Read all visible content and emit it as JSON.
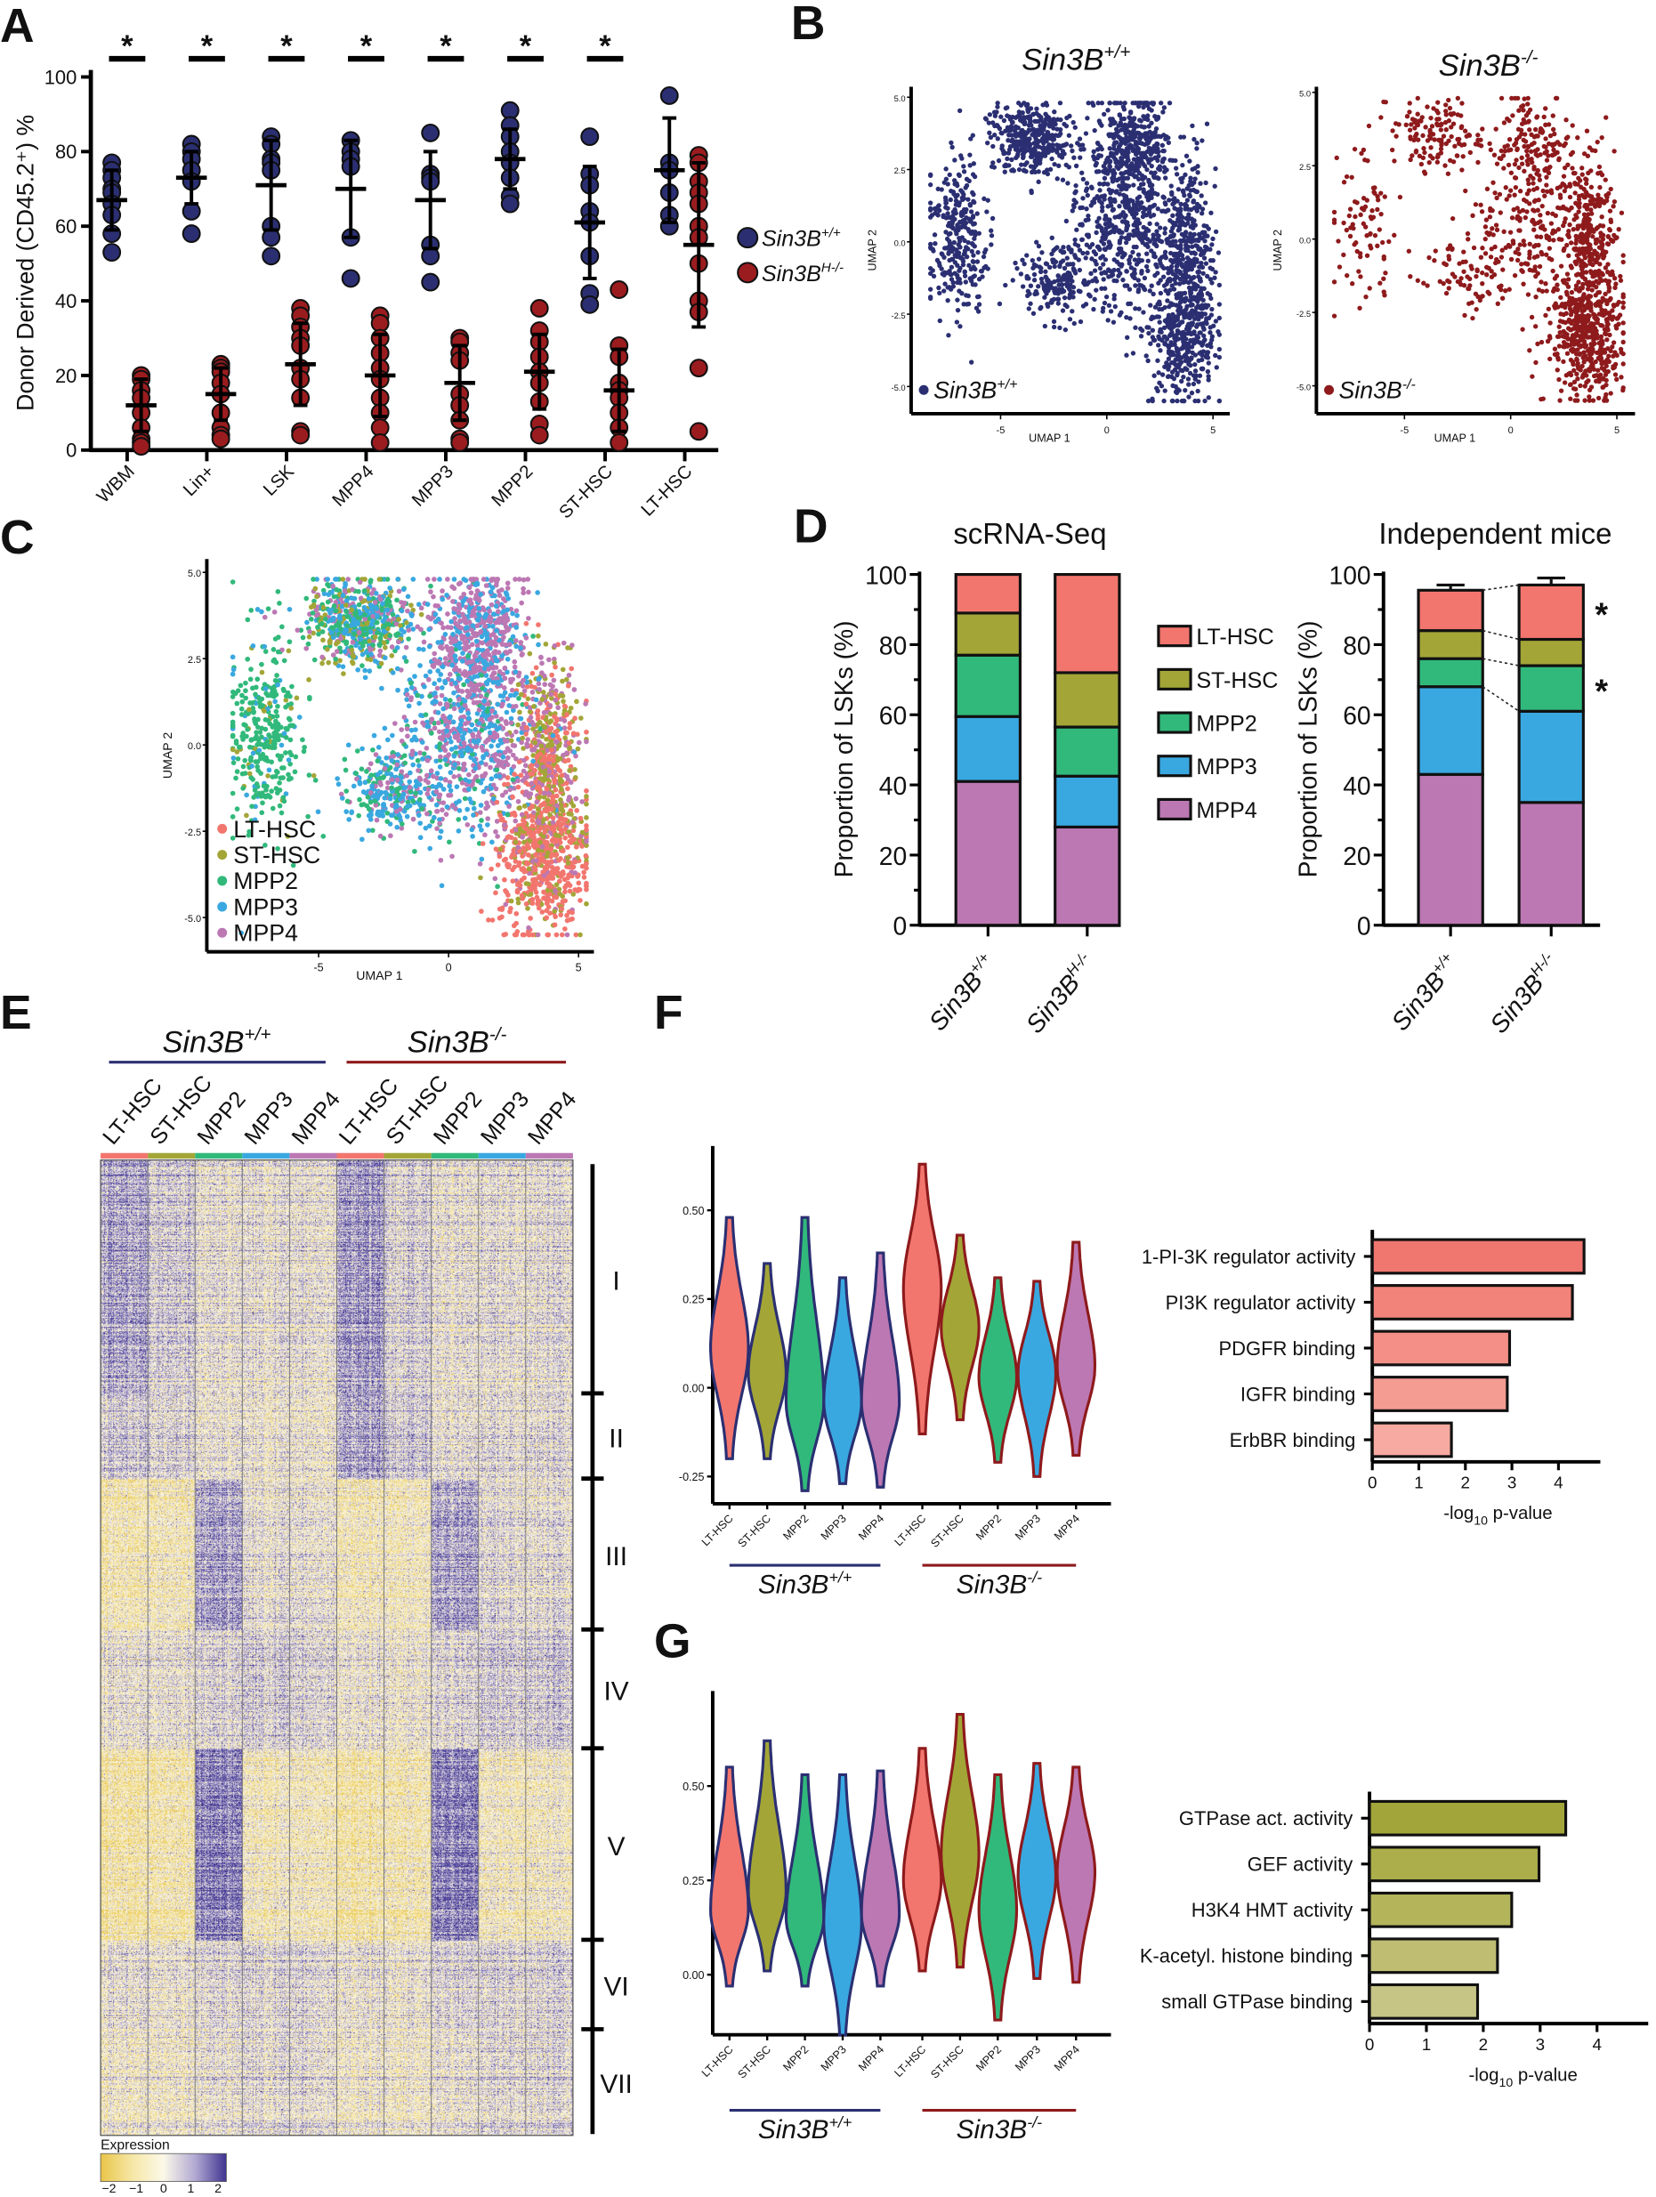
{
  "panel_labels": {
    "A": "A",
    "B": "B",
    "C": "C",
    "D": "D",
    "E": "E",
    "F": "F",
    "G": "G"
  },
  "genotypes": {
    "wt": {
      "base": "Sin3B",
      "sup": "+/+"
    },
    "het": {
      "base": "Sin3B",
      "sup": "H-/-"
    },
    "ko": {
      "base": "Sin3B",
      "sup": "-/-"
    }
  },
  "colors": {
    "wt": "#2b2f72",
    "het": "#9b1c1f",
    "ko": "#8e1a1c",
    "LT-HSC": "#f2766e",
    "ST-HSC": "#a3a637",
    "MPP2": "#31b97b",
    "MPP3": "#3aa8e0",
    "MPP4": "#bc78b3"
  },
  "cell_types": [
    "LT-HSC",
    "ST-HSC",
    "MPP2",
    "MPP3",
    "MPP4"
  ],
  "chart_data": [
    {
      "id": "A",
      "type": "scatter",
      "ylabel": "Donor Derived (CD45.2⁺) %",
      "ylim": [
        0,
        100
      ],
      "yticks": [
        "0",
        "20",
        "40",
        "60",
        "80",
        "100"
      ],
      "categories": [
        "WBM",
        "Lin+",
        "LSK",
        "MPP4",
        "MPP3",
        "MPP2",
        "ST-HSC",
        "LT-HSC"
      ],
      "significance": [
        "*",
        "*",
        "*",
        "*",
        "*",
        "*",
        "*",
        ""
      ],
      "legend": [
        "wt",
        "het"
      ],
      "series": [
        {
          "name": "wt",
          "mean": [
            67,
            73,
            71,
            70,
            67,
            78,
            61,
            75
          ],
          "sd": [
            8,
            7,
            12,
            13,
            13,
            8,
            15,
            14
          ],
          "points": [
            [
              77,
              75,
              73,
              70,
              69,
              66,
              63,
              58,
              53
            ],
            [
              82,
              80,
              78,
              75,
              72,
              64,
              58
            ],
            [
              84,
              82,
              78,
              77,
              75,
              60,
              57,
              52
            ],
            [
              83,
              80,
              78,
              76,
              57,
              46
            ],
            [
              85,
              74,
              73,
              72,
              55,
              52,
              45
            ],
            [
              91,
              87,
              84,
              80,
              77,
              73,
              68,
              66
            ],
            [
              84,
              74,
              71,
              64,
              61,
              52,
              42,
              39
            ],
            [
              95,
              77,
              75,
              69,
              63,
              60
            ]
          ]
        },
        {
          "name": "het",
          "mean": [
            12,
            15,
            23,
            20,
            18,
            21,
            16,
            55
          ],
          "sd": [
            7,
            7,
            11,
            11,
            10,
            10,
            11,
            22
          ],
          "points": [
            [
              20,
              19,
              16,
              14,
              10,
              6,
              3,
              2,
              1
            ],
            [
              23,
              22,
              21,
              18,
              15,
              10,
              6,
              4,
              3
            ],
            [
              38,
              36,
              33,
              30,
              28,
              22,
              19,
              14,
              5,
              4
            ],
            [
              36,
              34,
              30,
              26,
              22,
              19,
              14,
              10,
              6,
              2
            ],
            [
              30,
              29,
              26,
              24,
              15,
              12,
              8,
              3,
              2
            ],
            [
              38,
              32,
              29,
              25,
              21,
              18,
              13,
              7,
              4
            ],
            [
              43,
              28,
              25,
              18,
              16,
              14,
              10,
              6,
              2
            ],
            [
              79,
              77,
              72,
              69,
              66,
              60,
              57,
              50,
              40,
              37,
              22,
              5
            ]
          ]
        }
      ]
    },
    {
      "id": "B",
      "type": "scatter",
      "plots": [
        {
          "title": "wt",
          "legend": "wt",
          "color": "wt"
        },
        {
          "title": "ko",
          "legend": "ko",
          "color": "ko"
        }
      ],
      "xlabel": "UMAP  1",
      "ylabel": "UMAP  2",
      "xticks": [
        "-5",
        "0",
        "5"
      ],
      "yticks": [
        "5.0",
        "2.5",
        "0.0",
        "-2.5",
        "-5.0"
      ]
    },
    {
      "id": "C",
      "type": "scatter",
      "xlabel": "UMAP  1",
      "ylabel": "UMAP  2",
      "xticks": [
        "-5",
        "0",
        "5"
      ],
      "yticks": [
        "5.0",
        "2.5",
        "0.0",
        "-2.5",
        "-5.0"
      ],
      "legend": [
        "LT-HSC",
        "ST-HSC",
        "MPP2",
        "MPP3",
        "MPP4"
      ]
    },
    {
      "id": "D",
      "type": "bar",
      "stacked": true,
      "ylabel": "Proportion of  LSKs (%)",
      "ylim": [
        0,
        100
      ],
      "yticks": [
        "0",
        "20",
        "40",
        "60",
        "80",
        "100"
      ],
      "legend": [
        "LT-HSC",
        "ST-HSC",
        "MPP2",
        "MPP3",
        "MPP4"
      ],
      "charts": [
        {
          "title": "scRNA-Seq",
          "categories": [
            "wt",
            "het"
          ],
          "series": [
            {
              "name": "MPP4",
              "values": [
                41,
                28
              ]
            },
            {
              "name": "MPP3",
              "values": [
                18.5,
                14.5
              ]
            },
            {
              "name": "MPP2",
              "values": [
                17.5,
                14
              ]
            },
            {
              "name": "ST-HSC",
              "values": [
                12,
                15.5
              ]
            },
            {
              "name": "LT-HSC",
              "values": [
                11,
                28
              ]
            }
          ]
        },
        {
          "title": "Independent mice",
          "categories": [
            "wt",
            "het"
          ],
          "series": [
            {
              "name": "MPP4",
              "values": [
                43,
                35
              ],
              "err": [
                4.5,
                4
              ]
            },
            {
              "name": "MPP3",
              "values": [
                25,
                26
              ],
              "err": [
                3,
                3.5
              ]
            },
            {
              "name": "MPP2",
              "values": [
                8,
                13
              ],
              "err": [
                1.5,
                2
              ]
            },
            {
              "name": "ST-HSC",
              "values": [
                8,
                7.5
              ],
              "err": [
                1.5,
                1
              ]
            },
            {
              "name": "LT-HSC",
              "values": [
                11.5,
                15.5
              ],
              "err": [
                1.5,
                2
              ]
            }
          ],
          "significance": [
            {
              "series": "LT-HSC",
              "mark": "*"
            },
            {
              "series": "MPP2",
              "mark": "*"
            }
          ]
        }
      ]
    },
    {
      "id": "E",
      "type": "heatmap",
      "groups": [
        "wt",
        "ko"
      ],
      "columns": [
        "LT-HSC",
        "ST-HSC",
        "MPP2",
        "MPP3",
        "MPP4",
        "LT-HSC",
        "ST-HSC",
        "MPP2",
        "MPP3",
        "MPP4"
      ],
      "clusters": [
        "I",
        "II",
        "III",
        "IV",
        "V",
        "VI",
        "VII"
      ],
      "cluster_mean_expression": [
        [
          0.9,
          0.4,
          0,
          0.1,
          0.1,
          1.0,
          0.3,
          0,
          0.1,
          0.1
        ],
        [
          0.5,
          0.3,
          0,
          0,
          0,
          0.9,
          0.5,
          0.1,
          0.2,
          0.2
        ],
        [
          -0.6,
          -0.5,
          0.9,
          0.1,
          0.1,
          -0.5,
          -0.4,
          0.9,
          0.2,
          0.1
        ],
        [
          0.1,
          0.1,
          0.3,
          0.5,
          0.4,
          0,
          0,
          0.3,
          0.5,
          0.5
        ],
        [
          -0.8,
          -0.7,
          1.3,
          -0.4,
          -0.4,
          -0.8,
          -0.6,
          1.3,
          -0.4,
          -0.4
        ],
        [
          0.1,
          0,
          0.2,
          0.3,
          0.3,
          0,
          0,
          0.3,
          0.3,
          0.3
        ],
        [
          -0.2,
          -0.2,
          0,
          0.2,
          0.2,
          -0.2,
          -0.2,
          0,
          0.2,
          0.2
        ]
      ],
      "legend_title": "Expression",
      "legend_ticks": [
        "−2",
        "−1",
        "0",
        "1",
        "2"
      ]
    },
    {
      "id": "F-violin",
      "type": "violin",
      "ylim": [
        -0.3,
        0.65
      ],
      "yticks": [
        "0.50",
        "0.25",
        "0.00",
        "-0.25"
      ],
      "ytick_values": [
        0.5,
        0.25,
        0,
        -0.25
      ],
      "categories": [
        "LT-HSC",
        "ST-HSC",
        "MPP2",
        "MPP3",
        "MPP4",
        "LT-HSC",
        "ST-HSC",
        "MPP2",
        "MPP3",
        "MPP4"
      ],
      "groups": [
        "wt",
        "ko"
      ],
      "stats": [
        [
          -0.2,
          0.48,
          0.11
        ],
        [
          -0.2,
          0.35,
          0.04
        ],
        [
          -0.29,
          0.48,
          -0.04
        ],
        [
          -0.27,
          0.31,
          -0.04
        ],
        [
          -0.28,
          0.38,
          -0.04
        ],
        [
          -0.13,
          0.63,
          0.28
        ],
        [
          -0.09,
          0.43,
          0.17
        ],
        [
          -0.21,
          0.31,
          0.03
        ],
        [
          -0.25,
          0.3,
          0.04
        ],
        [
          -0.19,
          0.41,
          0.06
        ]
      ]
    },
    {
      "id": "F-bar",
      "type": "bar",
      "orientation": "horizontal",
      "xlabel": "-log",
      "xlabel_sub": "10",
      "xlabel_tail": " p-value",
      "xticks": [
        "0",
        "1",
        "2",
        "3",
        "4"
      ],
      "categories": [
        "1-PI-3K regulator activity",
        "PI3K regulator activity",
        "PDGFR binding",
        "IGFR binding",
        "ErbBR binding"
      ],
      "values": [
        4.55,
        4.3,
        2.95,
        2.9,
        1.7
      ],
      "bar_colors": [
        "#f07670",
        "#f2837a",
        "#f38f86",
        "#f49b92",
        "#f6aaa1"
      ]
    },
    {
      "id": "G-violin",
      "type": "violin",
      "ylim": [
        -0.18,
        0.72
      ],
      "yticks": [
        "0.50",
        "0.25",
        "0.00"
      ],
      "ytick_values": [
        0.5,
        0.25,
        0
      ],
      "categories": [
        "LT-HSC",
        "ST-HSC",
        "MPP2",
        "MPP3",
        "MPP4",
        "LT-HSC",
        "ST-HSC",
        "MPP2",
        "MPP3",
        "MPP4"
      ],
      "groups": [
        "wt",
        "ko"
      ],
      "stats": [
        [
          -0.03,
          0.55,
          0.17
        ],
        [
          0.01,
          0.62,
          0.22
        ],
        [
          -0.03,
          0.53,
          0.15
        ],
        [
          -0.16,
          0.53,
          0.14
        ],
        [
          -0.03,
          0.54,
          0.16
        ],
        [
          0.01,
          0.6,
          0.25
        ],
        [
          0.02,
          0.69,
          0.32
        ],
        [
          -0.12,
          0.53,
          0.17
        ],
        [
          -0.01,
          0.56,
          0.26
        ],
        [
          -0.02,
          0.55,
          0.27
        ]
      ]
    },
    {
      "id": "G-bar",
      "type": "bar",
      "orientation": "horizontal",
      "xlabel": "-log",
      "xlabel_sub": "10",
      "xlabel_tail": " p-value",
      "xticks": [
        "0",
        "1",
        "2",
        "3",
        "4"
      ],
      "categories": [
        "GTPase act. activity",
        "GEF activity",
        "H3K4 HMT activity",
        "K-acetyl. histone binding",
        "small GTPase binding"
      ],
      "values": [
        3.45,
        2.98,
        2.5,
        2.25,
        1.9
      ],
      "bar_colors": [
        "#a2a63a",
        "#abae4a",
        "#b4b55b",
        "#bebd72",
        "#c6c586"
      ]
    }
  ]
}
